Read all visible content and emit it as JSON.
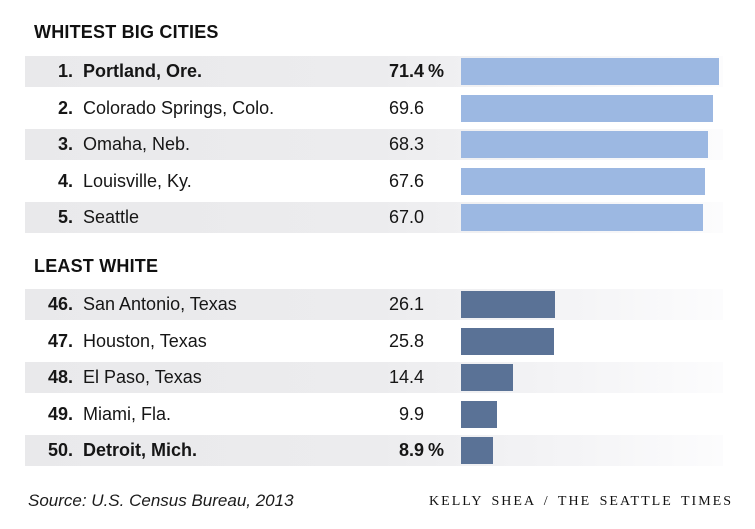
{
  "chart_data": {
    "type": "bar",
    "orientation": "horizontal",
    "unit": "percent",
    "grid": false,
    "legend": false,
    "sections": [
      {
        "title": "WHITEST BIG CITIES",
        "bar_color": "#9cb8e2",
        "rows": [
          {
            "rank": "1.",
            "city": "Portland, Ore.",
            "value": 71.4,
            "display": "71.4",
            "suffix": "%",
            "bold": true
          },
          {
            "rank": "2.",
            "city": "Colorado Springs, Colo.",
            "value": 69.6,
            "display": "69.6",
            "suffix": "",
            "bold": false
          },
          {
            "rank": "3.",
            "city": "Omaha, Neb.",
            "value": 68.3,
            "display": "68.3",
            "suffix": "",
            "bold": false
          },
          {
            "rank": "4.",
            "city": "Louisville, Ky.",
            "value": 67.6,
            "display": "67.6",
            "suffix": "",
            "bold": false
          },
          {
            "rank": "5.",
            "city": "Seattle",
            "value": 67.0,
            "display": "67.0",
            "suffix": "",
            "bold": false
          }
        ]
      },
      {
        "title": "LEAST WHITE",
        "bar_color": "#5a7296",
        "rows": [
          {
            "rank": "46.",
            "city": "San Antonio, Texas",
            "value": 26.1,
            "display": "26.1",
            "suffix": "",
            "bold": false
          },
          {
            "rank": "47.",
            "city": "Houston, Texas",
            "value": 25.8,
            "display": "25.8",
            "suffix": "",
            "bold": false
          },
          {
            "rank": "48.",
            "city": "El Paso, Texas",
            "value": 14.4,
            "display": "14.4",
            "suffix": "",
            "bold": false
          },
          {
            "rank": "49.",
            "city": "Miami, Fla.",
            "value": 9.9,
            "display": "9.9",
            "suffix": "",
            "bold": false
          },
          {
            "rank": "50.",
            "city": "Detroit, Mich.",
            "value": 8.9,
            "display": "8.9",
            "suffix": "%",
            "bold": true
          }
        ]
      }
    ],
    "source": "Source: U.S. Census Bureau, 2013",
    "credit": "KELLY SHEA / THE SEATTLE TIMES",
    "colors": {
      "light_bar": "#9cb8e2",
      "dark_bar": "#5a7296",
      "stripe": "#ececee",
      "text": "#161616"
    }
  }
}
